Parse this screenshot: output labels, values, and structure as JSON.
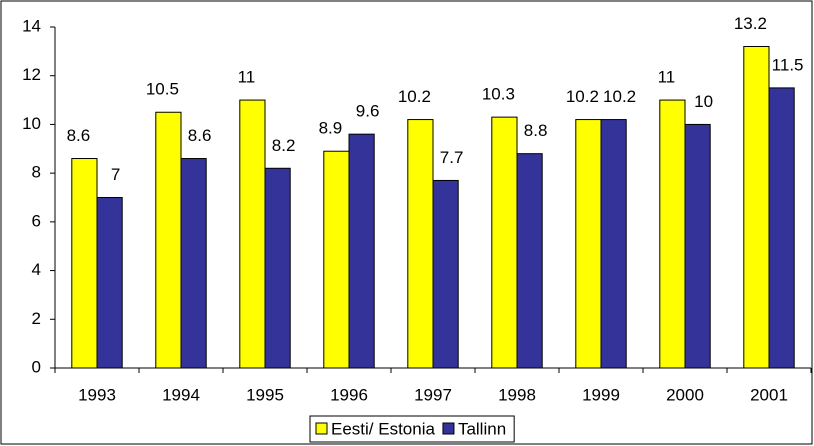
{
  "chart_data": {
    "type": "bar",
    "categories": [
      "1993",
      "1994",
      "1995",
      "1996",
      "1997",
      "1998",
      "1999",
      "2000",
      "2001"
    ],
    "series": [
      {
        "name": "Eesti/ Estonia",
        "color": "#ffff00",
        "values": [
          8.6,
          10.5,
          11,
          8.9,
          10.2,
          10.3,
          10.2,
          11,
          13.2
        ]
      },
      {
        "name": "Tallinn",
        "color": "#333399",
        "values": [
          7,
          8.6,
          8.2,
          9.6,
          7.7,
          8.8,
          10.2,
          10,
          11.5
        ]
      }
    ],
    "ylim": [
      0,
      14
    ],
    "yticks": [
      0,
      2,
      4,
      6,
      8,
      10,
      12,
      14
    ],
    "grid": false,
    "legend": "bottom"
  }
}
